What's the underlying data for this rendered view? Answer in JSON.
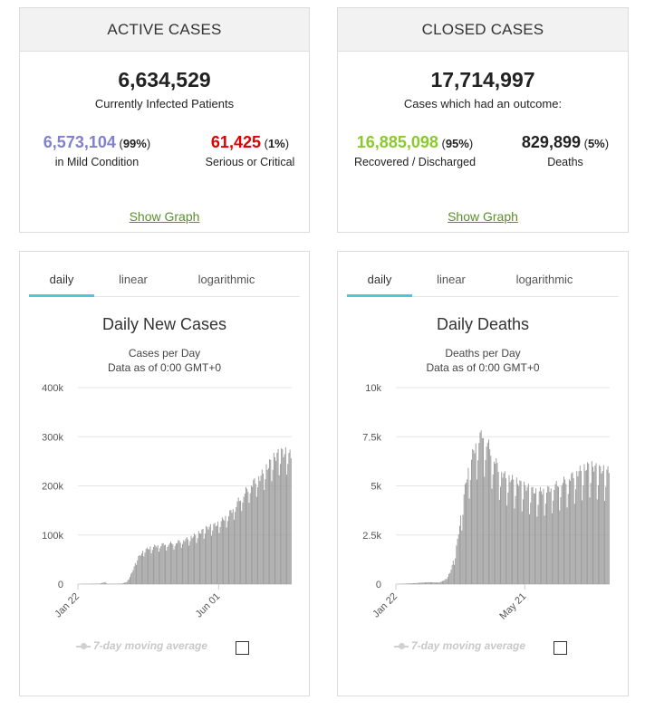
{
  "active": {
    "title": "ACTIVE CASES",
    "total": "6,634,529",
    "caption": "Currently Infected Patients",
    "mild": {
      "value": "6,573,104",
      "pct": "99%",
      "label": "in Mild Condition"
    },
    "critical": {
      "value": "61,425",
      "pct": "1%",
      "label": "Serious or Critical"
    },
    "link": "Show Graph"
  },
  "closed": {
    "title": "CLOSED CASES",
    "total": "17,714,997",
    "caption": "Cases which had an outcome:",
    "recovered": {
      "value": "16,885,098",
      "pct": "95%",
      "label": "Recovered / Discharged"
    },
    "deaths": {
      "value": "829,899",
      "pct": "5%",
      "label": "Deaths"
    },
    "link": "Show Graph"
  },
  "chart1": {
    "tabs": [
      "daily",
      "linear",
      "logarithmic"
    ],
    "title": "Daily New Cases",
    "subtitle": "Cases per Day",
    "asof": "Data as of 0:00 GMT+0",
    "legend": "7-day moving average"
  },
  "chart2": {
    "tabs": [
      "daily",
      "linear",
      "logarithmic"
    ],
    "title": "Daily Deaths",
    "subtitle": "Deaths per Day",
    "asof": "Data as of 0:00 GMT+0",
    "legend": "7-day moving average"
  },
  "colors": {
    "bar": "#999999",
    "link": "#5a8f29",
    "mild": "#8080cc",
    "critical": "#e00000",
    "recovered": "#8aca2b",
    "tab_active": "#4fc3e0"
  },
  "chart_data": [
    {
      "type": "bar",
      "title": "Daily New Cases",
      "ylabel": "Cases per Day",
      "ylim": [
        0,
        400000
      ],
      "y_ticks": [
        "0",
        "100k",
        "200k",
        "300k",
        "400k"
      ],
      "x_ticks": [
        "Jan 22",
        "Jun 01"
      ],
      "x_tick_index": [
        0,
        131
      ],
      "anchors": [
        [
          0,
          0
        ],
        [
          20,
          1000
        ],
        [
          25,
          4000
        ],
        [
          27,
          500
        ],
        [
          40,
          1000
        ],
        [
          45,
          4000
        ],
        [
          50,
          25000
        ],
        [
          55,
          55000
        ],
        [
          62,
          73000
        ],
        [
          70,
          80000
        ],
        [
          80,
          85000
        ],
        [
          90,
          88000
        ],
        [
          100,
          95000
        ],
        [
          110,
          105000
        ],
        [
          120,
          120000
        ],
        [
          130,
          128000
        ],
        [
          140,
          148000
        ],
        [
          150,
          180000
        ],
        [
          160,
          210000
        ],
        [
          170,
          230000
        ],
        [
          180,
          262000
        ],
        [
          185,
          275000
        ],
        [
          190,
          280000
        ],
        [
          195,
          278000
        ],
        [
          198,
          272000
        ]
      ],
      "weekly_dip": 0.2
    },
    {
      "type": "bar",
      "title": "Daily Deaths",
      "ylabel": "Deaths per Day",
      "ylim": [
        0,
        10000
      ],
      "y_ticks": [
        "0",
        "2.5k",
        "5k",
        "7.5k",
        "10k"
      ],
      "x_ticks": [
        "Jan 22",
        "May 21"
      ],
      "x_tick_index": [
        0,
        120
      ],
      "anchors": [
        [
          0,
          0
        ],
        [
          10,
          30
        ],
        [
          20,
          60
        ],
        [
          30,
          100
        ],
        [
          40,
          80
        ],
        [
          45,
          200
        ],
        [
          50,
          600
        ],
        [
          55,
          1600
        ],
        [
          60,
          3500
        ],
        [
          65,
          5500
        ],
        [
          70,
          6700
        ],
        [
          75,
          7600
        ],
        [
          80,
          8000
        ],
        [
          85,
          7500
        ],
        [
          90,
          6800
        ],
        [
          95,
          6200
        ],
        [
          100,
          5800
        ],
        [
          110,
          5500
        ],
        [
          120,
          5200
        ],
        [
          130,
          4900
        ],
        [
          140,
          5000
        ],
        [
          150,
          5300
        ],
        [
          160,
          5600
        ],
        [
          170,
          6000
        ],
        [
          180,
          6300
        ],
        [
          190,
          6100
        ],
        [
          198,
          6000
        ]
      ],
      "weekly_dip": 0.3
    }
  ]
}
